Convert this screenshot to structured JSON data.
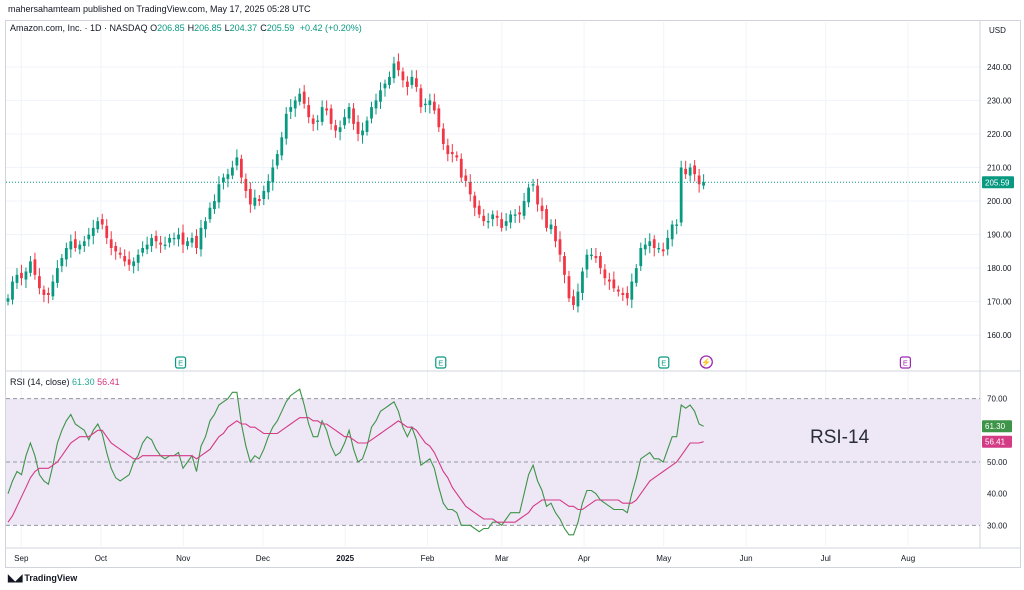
{
  "header": {
    "published": "mahersahamteam published on TradingView.com, May 17, 2025 05:28 UTC",
    "symbol": "Amazon.com, Inc. · 1D · NASDAQ",
    "ohlc": [
      {
        "k": "O",
        "v": "206.85"
      },
      {
        "k": "H",
        "v": "206.85"
      },
      {
        "k": "L",
        "v": "204.37"
      },
      {
        "k": "C",
        "v": "205.59"
      }
    ],
    "change": "+0.42 (+0.20%)"
  },
  "footer": {
    "logo_text": "TradingView"
  },
  "colors": {
    "up": "#089981",
    "down": "#f23645",
    "rsi": "#3e9448",
    "rsi_ma": "#d43b85",
    "band": "#ede7f6",
    "earnings": "#089981",
    "dividend": "#9c27b0"
  },
  "chart_data": [
    {
      "type": "candlestick",
      "title": "Amazon.com, Inc. · 1D · NASDAQ",
      "currency_label": "USD",
      "ylim": [
        155,
        248
      ],
      "y_ticks": [
        "240.00",
        "230.00",
        "220.00",
        "210.00",
        "200.00",
        "190.00",
        "180.00",
        "170.00",
        "160.00"
      ],
      "y_tick_values": [
        240,
        230,
        220,
        210,
        200,
        190,
        180,
        170,
        160
      ],
      "x_tick_labels": [
        "Sep",
        "Oct",
        "Nov",
        "Dec",
        "2025",
        "Feb",
        "Mar",
        "Apr",
        "May",
        "Jun",
        "Jul",
        "Aug"
      ],
      "last_price": 205.59,
      "last_price_label": "205.59",
      "events": [
        {
          "type": "earnings",
          "label": "E",
          "date": "2024-10-31"
        },
        {
          "type": "earnings",
          "label": "E",
          "date": "2025-02-06"
        },
        {
          "type": "earnings",
          "label": "E",
          "date": "2025-05-01"
        },
        {
          "type": "split",
          "label": "⚡",
          "date": "2025-05-17"
        },
        {
          "type": "dividend",
          "label": "E",
          "date": "2025-07-31"
        }
      ],
      "closes": [
        171,
        176,
        178,
        177,
        179,
        182,
        178,
        174,
        172,
        172,
        176,
        180,
        183,
        186,
        188,
        186,
        187,
        188,
        190,
        192,
        194,
        193,
        189,
        186,
        185,
        184,
        182,
        181,
        182,
        184,
        186,
        187,
        189,
        188,
        187,
        187,
        189,
        189,
        190,
        187,
        188,
        189,
        186,
        192,
        194,
        198,
        200,
        205,
        207,
        208,
        210,
        213,
        207,
        203,
        199,
        201,
        200,
        203,
        206,
        210,
        214,
        219,
        226,
        228,
        230,
        232,
        229,
        225,
        223,
        224,
        228,
        227,
        223,
        221,
        222,
        225,
        228,
        223,
        220,
        221,
        224,
        228,
        230,
        233,
        235,
        237,
        241,
        239,
        236,
        234,
        237,
        234,
        228,
        229,
        230,
        227,
        222,
        217,
        214,
        214,
        213,
        207,
        206,
        202,
        198,
        196,
        194,
        194,
        196,
        195,
        192,
        194,
        196,
        196,
        196,
        200,
        204,
        205,
        199,
        197,
        192,
        193,
        188,
        184,
        178,
        171,
        169,
        173,
        179,
        184,
        184,
        183,
        180,
        177,
        176,
        174,
        173,
        172,
        171,
        176,
        180,
        186,
        187,
        188,
        186,
        186,
        185,
        189,
        193,
        193,
        210,
        208,
        210,
        208,
        205,
        205.59
      ],
      "note": "closes: approximate daily closing prices read from the candle bodies, Aug 27 2024 → May 16 2025"
    },
    {
      "type": "line",
      "title": "RSI (14, close)",
      "ylim": [
        26,
        74
      ],
      "y_ticks": [
        "70.00",
        "50.00",
        "40.00",
        "30.00"
      ],
      "y_tick_values": [
        70,
        50,
        40,
        30
      ],
      "band": [
        30,
        70
      ],
      "midline": 50,
      "series": [
        {
          "name": "RSI",
          "value": 61.3,
          "value_label": "61.30",
          "values": [
            40,
            44,
            47,
            46,
            52,
            56,
            52,
            46,
            44,
            43,
            49,
            56,
            60,
            63,
            65,
            62,
            61,
            60,
            57,
            60,
            62,
            59,
            53,
            48,
            45,
            44,
            45,
            46,
            50,
            52,
            56,
            58,
            57,
            54,
            52,
            51,
            52,
            52,
            53,
            48,
            50,
            52,
            47,
            55,
            58,
            63,
            65,
            68,
            69,
            70,
            72,
            72,
            62,
            55,
            50,
            52,
            51,
            54,
            58,
            61,
            63,
            66,
            69,
            71,
            72,
            73,
            68,
            62,
            58,
            58,
            63,
            60,
            55,
            52,
            53,
            56,
            60,
            54,
            50,
            51,
            55,
            61,
            63,
            66,
            67,
            68,
            69,
            66,
            61,
            58,
            61,
            57,
            49,
            50,
            51,
            48,
            42,
            37,
            35,
            35,
            34,
            30,
            30,
            30,
            29,
            28,
            29,
            29,
            31,
            31,
            30,
            32,
            34,
            34,
            34,
            40,
            46,
            49,
            44,
            41,
            36,
            37,
            34,
            32,
            29,
            27,
            27,
            31,
            37,
            41,
            41,
            40,
            38,
            37,
            36,
            35,
            35,
            35,
            34,
            40,
            45,
            51,
            52,
            53,
            51,
            51,
            50,
            54,
            58,
            58,
            68,
            67,
            68,
            66,
            62,
            61.3
          ]
        },
        {
          "name": "RSI-based MA",
          "value": 56.41,
          "value_label": "56.41",
          "values": [
            31,
            33,
            36,
            39,
            42,
            45,
            47,
            48,
            48,
            48,
            49,
            50,
            52,
            54,
            56,
            57,
            58,
            58,
            58,
            59,
            60,
            60,
            58,
            56,
            55,
            54,
            53,
            52,
            51,
            51,
            52,
            52,
            52,
            52,
            52,
            52,
            52,
            52,
            52,
            52,
            52,
            52,
            51,
            52,
            53,
            54,
            56,
            58,
            59,
            61,
            62,
            63,
            62,
            62,
            61,
            61,
            60,
            59,
            59,
            59,
            59,
            60,
            61,
            62,
            63,
            64,
            64,
            64,
            63,
            63,
            62,
            62,
            61,
            60,
            59,
            58,
            58,
            57,
            56,
            56,
            56,
            57,
            58,
            59,
            60,
            61,
            62,
            63,
            62,
            61,
            61,
            60,
            58,
            56,
            55,
            53,
            50,
            47,
            45,
            42,
            40,
            38,
            36,
            35,
            34,
            33,
            32,
            32,
            32,
            31,
            31,
            31,
            31,
            31,
            32,
            33,
            34,
            36,
            37,
            38,
            38,
            38,
            38,
            38,
            37,
            36,
            36,
            35,
            35,
            36,
            37,
            38,
            38,
            38,
            38,
            38,
            38,
            37,
            37,
            37,
            38,
            40,
            42,
            44,
            45,
            46,
            47,
            48,
            49,
            50,
            52,
            54,
            56,
            56,
            56,
            56.41
          ]
        }
      ],
      "annotation": "RSI-14"
    }
  ]
}
